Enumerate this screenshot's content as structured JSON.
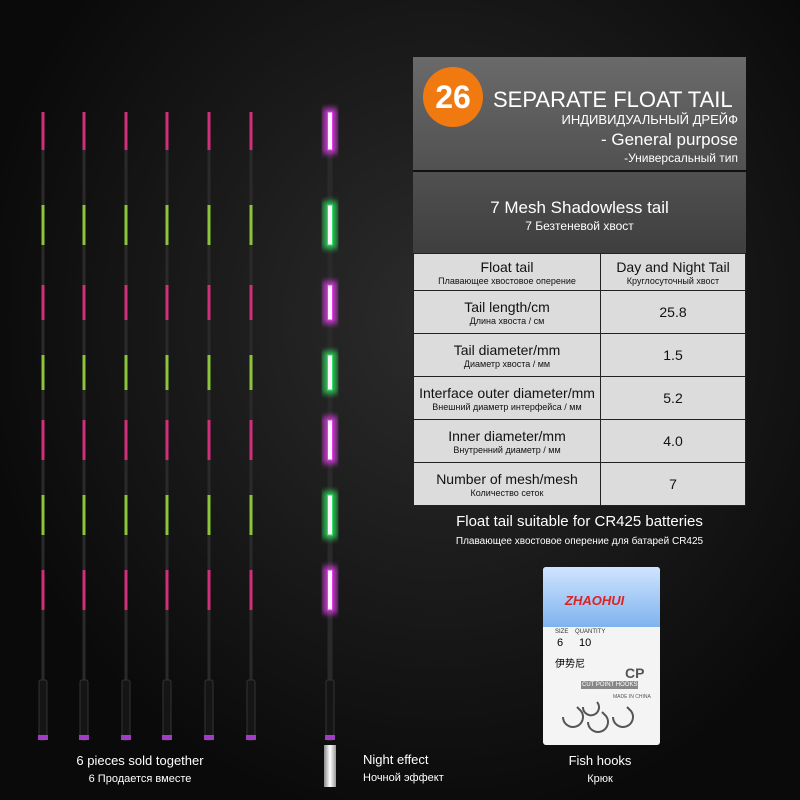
{
  "badge": "26",
  "header": {
    "title": "SEPARATE FLOAT TAIL",
    "title_ru": "ИНДИВИДУАЛЬНЫЙ ДРЕЙФ",
    "purpose": "- General purpose",
    "purpose_ru": "-Универсальный тип"
  },
  "section": {
    "title": "7 Mesh Shadowless tail",
    "title_ru": "7 Безтеневой хвост"
  },
  "table": {
    "header": [
      [
        "Float tail",
        "Плавающее хвостовое оперение"
      ],
      [
        "Day and Night Tail",
        "Круглосуточный хвост"
      ]
    ],
    "rows": [
      [
        [
          "Tail length/cm",
          "Длина хвоста / см"
        ],
        "25.8"
      ],
      [
        [
          "Tail diameter/mm",
          "Диаметр хвоста / мм"
        ],
        "1.5"
      ],
      [
        [
          "Interface outer diameter/mm",
          "Внешний диаметр интерфейса / мм"
        ],
        "5.2"
      ],
      [
        [
          "Inner diameter/mm",
          "Внутренний диаметр / мм"
        ],
        "4.0"
      ],
      [
        [
          "Number of mesh/mesh",
          "Количество сеток"
        ],
        "7"
      ]
    ]
  },
  "note": {
    "text": "Float tail suitable for CR425 batteries",
    "text_ru": "Плавающее хвостовое оперение для батарей CR425"
  },
  "package": {
    "brand": "ZHAOHUI",
    "size_label": "SIZE",
    "quantity_label": "QUANTITY",
    "size": "6",
    "quantity": "10",
    "name": "伊势尼",
    "code": "CP",
    "type": "CUT POINT HOOKS",
    "origin": "MADE IN CHINA"
  },
  "captions": [
    [
      "6 pieces sold together",
      "6 Продается вместе"
    ],
    [
      "Night effect",
      "Ночной эффект"
    ],
    [
      "Fish hooks",
      "Крюк"
    ]
  ]
}
